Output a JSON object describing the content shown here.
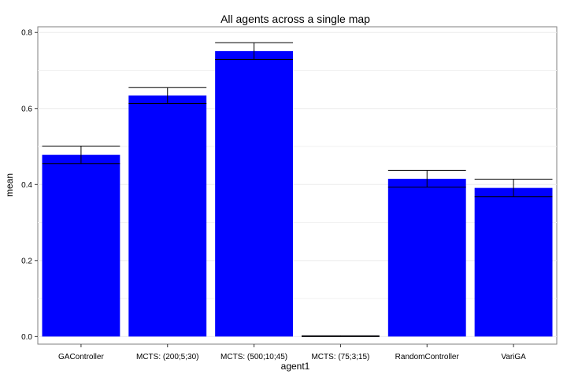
{
  "chart_data": {
    "type": "bar",
    "title": "All agents across a single map",
    "xlabel": "agent1",
    "ylabel": "mean",
    "ylim": [
      -0.02,
      0.815
    ],
    "yticks": [
      0.0,
      0.2,
      0.4,
      0.6,
      0.8
    ],
    "ytick_labels": [
      "0.0",
      "0.2",
      "0.4",
      "0.6",
      "0.8"
    ],
    "grid": true,
    "bar_color": "#0000ff",
    "categories": [
      "GAController",
      "MCTS: (200;5;30)",
      "MCTS: (500;10;45)",
      "MCTS: (75;3;15)",
      "RandomController",
      "VariGA"
    ],
    "values": [
      0.478,
      0.634,
      0.751,
      0.001,
      0.415,
      0.391
    ],
    "error_low": [
      0.455,
      0.613,
      0.729,
      0.0,
      0.393,
      0.368
    ],
    "error_high": [
      0.501,
      0.655,
      0.773,
      0.002,
      0.437,
      0.414
    ]
  }
}
